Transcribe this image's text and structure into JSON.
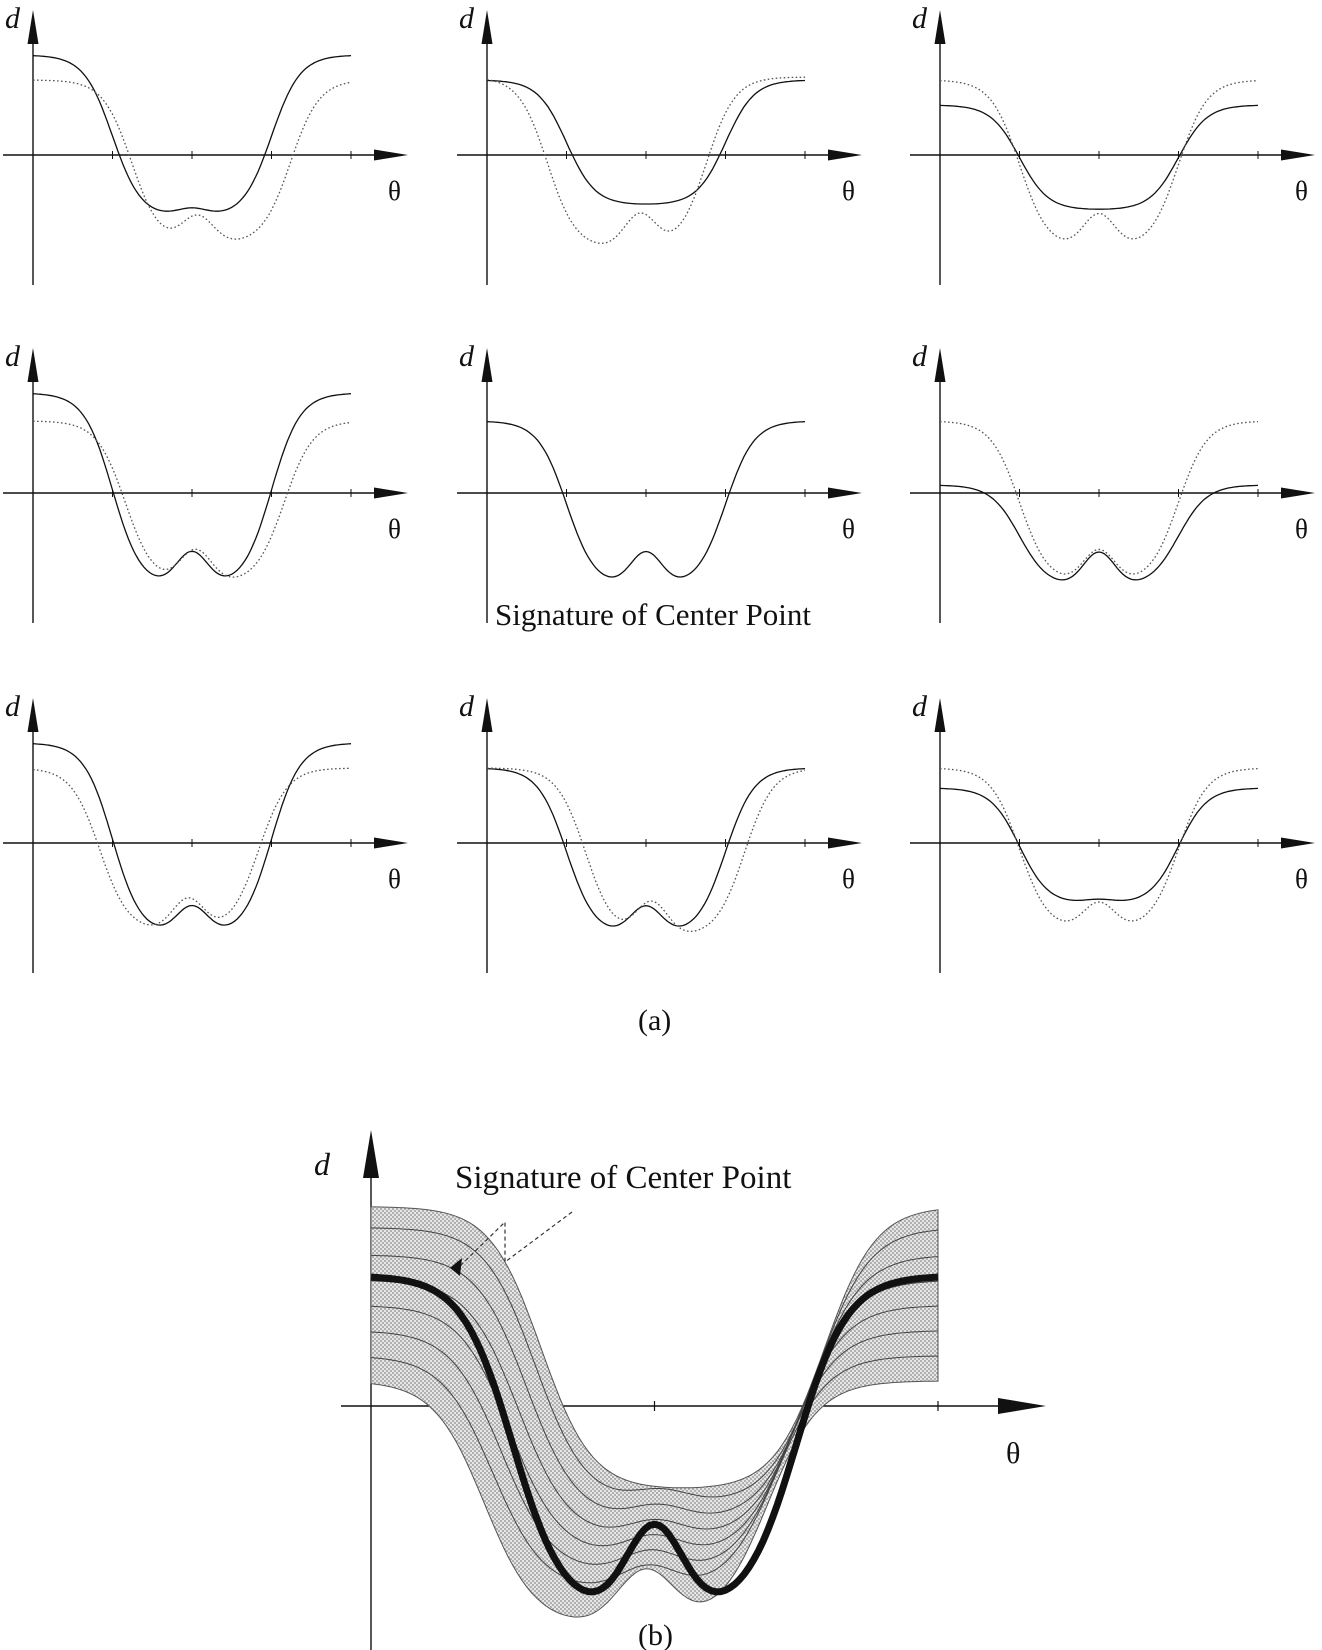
{
  "labels": {
    "y_axis": "d",
    "x_axis": "θ",
    "center_note": "Signature of Center Point",
    "caption_a": "(a)",
    "caption_b": "(b)"
  },
  "colors": {
    "ink": "#111111",
    "dotted": "#555555",
    "band_fill": "#cfcfcf"
  },
  "panels_a": [
    {
      "id": "r1c1",
      "solid_top": 1.0,
      "dotted_top": 0.75,
      "solid_low": -0.6,
      "dotted_low": -0.82,
      "solid_dip": 0.1,
      "dotted_dip": 0.25,
      "dotted_shift": 0.06
    },
    {
      "id": "r1c2",
      "solid_top": 0.75,
      "dotted_top": 0.78,
      "solid_low": -0.5,
      "dotted_low": -0.85,
      "solid_dip": 0.0,
      "dotted_dip": 0.3,
      "dotted_shift": -0.06
    },
    {
      "id": "r1c3",
      "solid_top": 0.5,
      "dotted_top": 0.75,
      "solid_low": -0.55,
      "dotted_low": -0.85,
      "solid_dip": 0.0,
      "dotted_dip": 0.3,
      "dotted_shift": 0.0
    },
    {
      "id": "r2c1",
      "solid_top": 1.0,
      "dotted_top": 0.72,
      "solid_low": -0.85,
      "dotted_low": -0.82,
      "solid_dip": 0.3,
      "dotted_dip": 0.3,
      "dotted_shift": 0.04
    },
    {
      "id": "r2c2",
      "solid_top": 0.72,
      "dotted_top": null,
      "solid_low": -0.85,
      "dotted_low": null,
      "solid_dip": 0.3,
      "dotted_dip": null,
      "dotted_shift": 0
    },
    {
      "id": "r2c3",
      "solid_top": 0.08,
      "dotted_top": 0.72,
      "solid_low": -0.85,
      "dotted_low": -0.82,
      "solid_dip": 0.3,
      "dotted_dip": 0.3,
      "dotted_shift": 0.0
    },
    {
      "id": "r3c1",
      "solid_top": 1.0,
      "dotted_top": 0.75,
      "solid_low": -0.85,
      "dotted_low": -0.8,
      "solid_dip": 0.25,
      "dotted_dip": 0.3,
      "dotted_shift": -0.04
    },
    {
      "id": "r3c2",
      "solid_top": 0.75,
      "dotted_top": 0.75,
      "solid_low": -0.85,
      "dotted_low": -0.85,
      "solid_dip": 0.25,
      "dotted_dip": 0.3,
      "dotted_shift": 0.06
    },
    {
      "id": "r3c3",
      "solid_top": 0.55,
      "dotted_top": 0.75,
      "solid_low": -0.6,
      "dotted_low": -0.8,
      "solid_dip": 0.05,
      "dotted_dip": 0.25,
      "dotted_shift": 0.0
    }
  ]
}
